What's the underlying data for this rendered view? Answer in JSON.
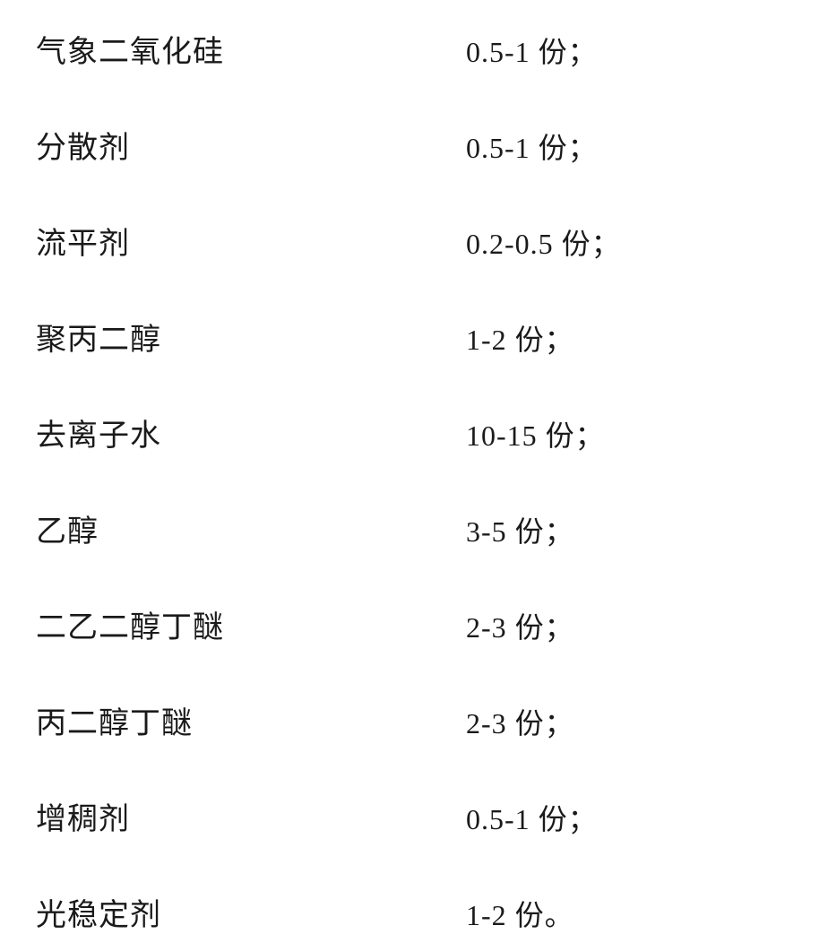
{
  "rows": [
    {
      "label": "气象二氧化硅",
      "value": "0.5-1 份；"
    },
    {
      "label": "分散剂",
      "value": "0.5-1 份；"
    },
    {
      "label": "流平剂",
      "value": "0.2-0.5 份；"
    },
    {
      "label": "聚丙二醇",
      "value": "1-2 份；"
    },
    {
      "label": "去离子水",
      "value": "10-15 份；"
    },
    {
      "label": "乙醇",
      "value": "3-5 份；"
    },
    {
      "label": "二乙二醇丁醚",
      "value": "2-3 份；"
    },
    {
      "label": "丙二醇丁醚",
      "value": "2-3 份；"
    },
    {
      "label": "增稠剂",
      "value": "0.5-1 份；"
    },
    {
      "label": "光稳定剂",
      "value": "1-2 份。"
    }
  ]
}
